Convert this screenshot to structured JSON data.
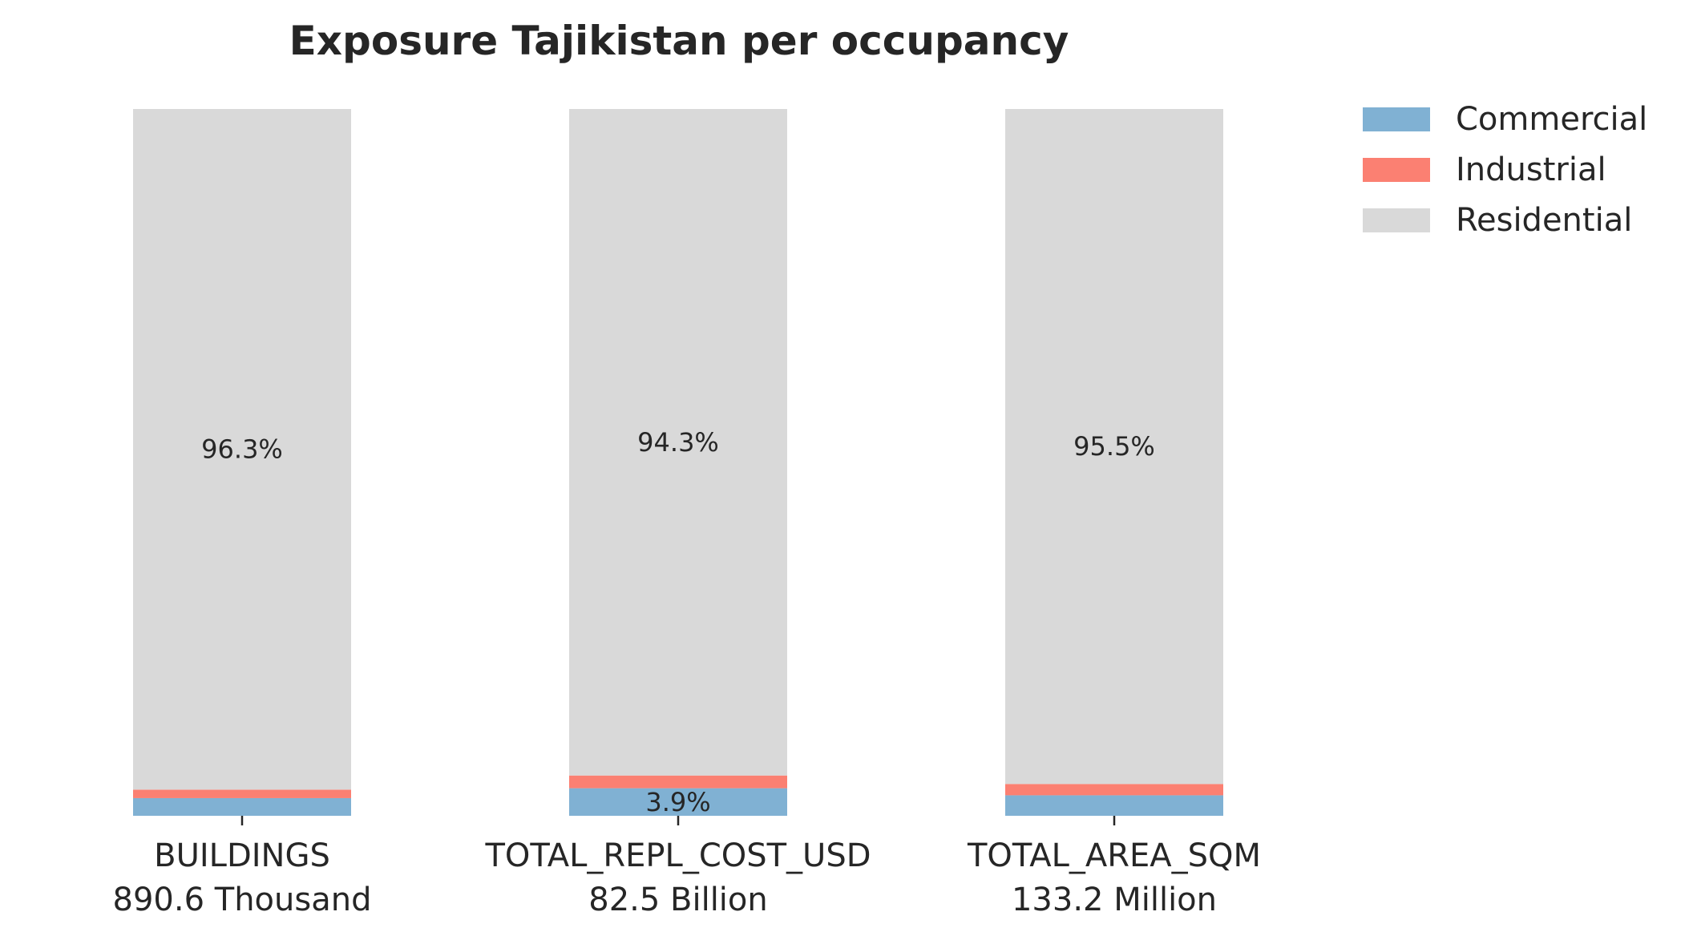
{
  "chart_data": {
    "type": "bar",
    "stacked": true,
    "normalized_percent": true,
    "title": "Exposure Tajikistan per occupancy",
    "xlabel": "",
    "ylabel": "",
    "ylim": [
      0,
      100
    ],
    "grid": false,
    "legend_position": "top-right, outside plot",
    "categories": [
      "BUILDINGS",
      "TOTAL_REPL_COST_USD",
      "TOTAL_AREA_SQM"
    ],
    "category_totals": [
      "890.6 Thousand",
      "82.5 Billion",
      "133.2 Million"
    ],
    "series": [
      {
        "name": "Commercial",
        "color": "#80b1d3",
        "values": [
          2.5,
          3.9,
          2.9
        ]
      },
      {
        "name": "Industrial",
        "color": "#fb8072",
        "values": [
          1.2,
          1.8,
          1.6
        ]
      },
      {
        "name": "Residential",
        "color": "#d9d9d9",
        "values": [
          96.3,
          94.3,
          95.5
        ]
      }
    ],
    "data_labels": [
      {
        "category_index": 0,
        "series_index": 2,
        "text": "96.3%"
      },
      {
        "category_index": 1,
        "series_index": 2,
        "text": "94.3%"
      },
      {
        "category_index": 1,
        "series_index": 0,
        "text": "3.9%"
      },
      {
        "category_index": 2,
        "series_index": 2,
        "text": "95.5%"
      }
    ]
  }
}
